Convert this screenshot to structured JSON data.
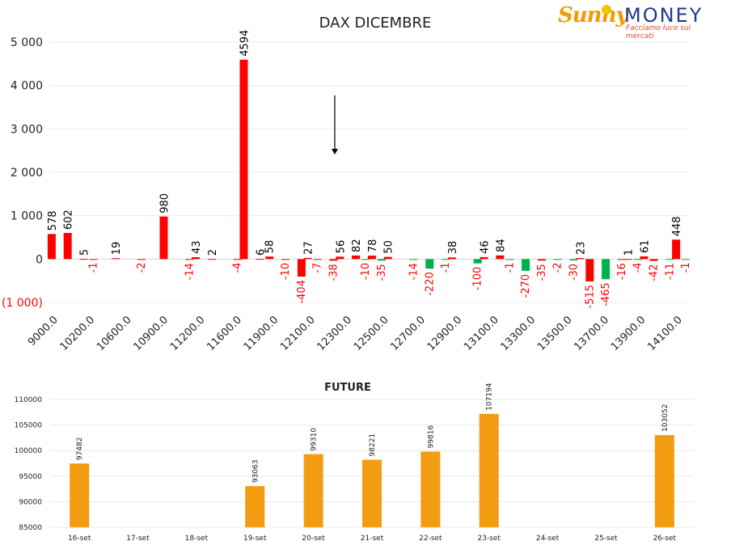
{
  "logo": {
    "brand_sunny": "Sunny",
    "brand_money": "MONEY",
    "tagline": "Facciamo luce sui mercati"
  },
  "chart_data": [
    {
      "type": "bar",
      "title": "DAX DICEMBRE",
      "xlabel": "",
      "ylabel": "",
      "ylim": [
        -1000,
        5000
      ],
      "y_ticks": [
        5000,
        4000,
        3000,
        2000,
        1000,
        0,
        -1000
      ],
      "y_tick_labels": [
        "5 000",
        "4 000",
        "3 000",
        "2 000",
        "1 000",
        "0",
        "(1 000)"
      ],
      "x_tick_labels": [
        "9000.0",
        "10200.0",
        "10600.0",
        "10900.0",
        "11200.0",
        "11600.0",
        "11900.0",
        "12100.0",
        "12300.0",
        "12500.0",
        "12700.0",
        "12900.0",
        "13100.0",
        "13300.0",
        "13500.0",
        "13700.0",
        "13900.0",
        "14100.0"
      ],
      "colors": {
        "call": "#ff0000",
        "put": "#00b050",
        "negative_label": "#ff0000",
        "label": "#000000"
      },
      "series": [
        {
          "values": [
            578,
            602,
            5,
            null,
            19,
            null,
            null,
            980,
            null,
            43,
            2,
            null,
            4594,
            6,
            null,
            null,
            27,
            null,
            56,
            82,
            78,
            50,
            null,
            null,
            null,
            38,
            null,
            46,
            84,
            null,
            null,
            null,
            null,
            23,
            null,
            null,
            1,
            61,
            null,
            448
          ]
        },
        {
          "values": [
            null,
            null,
            -1,
            null,
            null,
            -2,
            null,
            null,
            -14,
            null,
            null,
            -4,
            null,
            58,
            -10,
            -404,
            -7,
            -38,
            null,
            -10,
            -35,
            null,
            -14,
            -220,
            -1,
            null,
            -100,
            null,
            -1,
            -270,
            -35,
            -2,
            -30,
            -515,
            -465,
            -16,
            -4,
            -42,
            -11,
            -1
          ]
        }
      ],
      "bar_colors_put": [
        "",
        "",
        "",
        "",
        "",
        "",
        "",
        "",
        "",
        "",
        "",
        "",
        "",
        "",
        "",
        "",
        "",
        "",
        "",
        "green",
        "green",
        "green",
        "green",
        "green",
        "green",
        "green",
        "green",
        "green",
        "green",
        "green",
        "",
        "green",
        "green",
        "",
        "green",
        "",
        "green",
        "",
        "green",
        "green"
      ],
      "annotation": "arrow pointing down"
    },
    {
      "type": "bar",
      "title": "FUTURE",
      "xlabel": "",
      "ylabel": "",
      "ylim": [
        85000,
        110000
      ],
      "y_ticks": [
        110000,
        105000,
        100000,
        95000,
        90000,
        85000
      ],
      "categories": [
        "16-set",
        "17-set",
        "18-set",
        "19-set",
        "20-set",
        "21-set",
        "22-set",
        "23-set",
        "24-set",
        "25-set",
        "26-set"
      ],
      "values": [
        97482,
        null,
        null,
        93063,
        99310,
        98221,
        99816,
        107194,
        null,
        null,
        103052
      ],
      "value_labels": [
        "97482",
        "",
        "",
        "93063",
        "99310",
        "98221",
        "99816",
        "107194",
        "",
        "",
        "103052"
      ],
      "color": "#f39c12"
    }
  ]
}
